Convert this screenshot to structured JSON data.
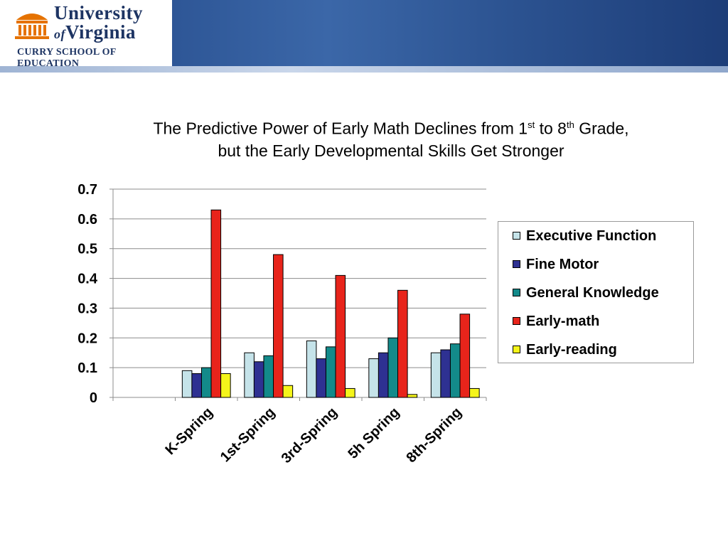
{
  "header": {
    "university_line1": "University",
    "university_of": "of",
    "university_line2": "Virginia",
    "school": "Curry School of Education"
  },
  "title": {
    "line1_a": "The Predictive Power of Early Math Declines from 1",
    "line1_sup1": "st",
    "line1_b": " to 8",
    "line1_sup2": "th",
    "line1_c": " Grade,",
    "line2": "but the Early Developmental Skills Get Stronger"
  },
  "chart_data": {
    "type": "bar",
    "categories": [
      "",
      "K-Spring",
      "1st-Spring",
      "3rd-Spring",
      "5h Spring",
      "8th-Spring"
    ],
    "series": [
      {
        "name": "Executive Function",
        "color": "#c5e3e9",
        "values": [
          null,
          0.09,
          0.15,
          0.19,
          0.13,
          0.15
        ]
      },
      {
        "name": "Fine Motor",
        "color": "#2e3192",
        "values": [
          null,
          0.08,
          0.12,
          0.13,
          0.15,
          0.16
        ]
      },
      {
        "name": "General Knowledge",
        "color": "#138a8a",
        "values": [
          null,
          0.1,
          0.14,
          0.17,
          0.2,
          0.18
        ]
      },
      {
        "name": "Early-math",
        "color": "#e8241b",
        "values": [
          null,
          0.63,
          0.48,
          0.41,
          0.36,
          0.28
        ]
      },
      {
        "name": "Early-reading",
        "color": "#f5f51a",
        "values": [
          null,
          0.08,
          0.04,
          0.03,
          0.01,
          0.03
        ]
      }
    ],
    "y_ticks": [
      "0",
      "0.1",
      "0.2",
      "0.3",
      "0.4",
      "0.5",
      "0.6",
      "0.7"
    ],
    "ylim": [
      0,
      0.7
    ],
    "grid": true,
    "legend_position": "right",
    "xlabel": "",
    "ylabel": ""
  }
}
